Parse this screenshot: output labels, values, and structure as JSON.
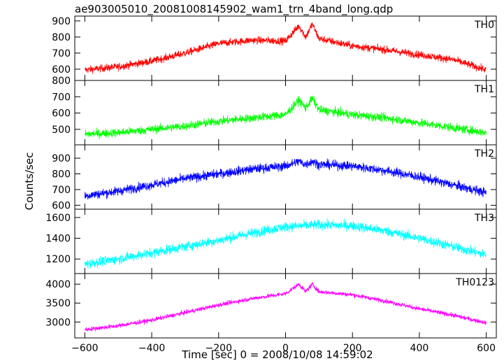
{
  "chart_data": {
    "type": "line",
    "title": "ae903005010_20081008145902_wam1_trn_4band_long.qdp",
    "xlabel": "Time [sec] 0 = 2008/10/08 14:59:02",
    "ylabel": "Counts/sec",
    "xlim": [
      -630,
      630
    ],
    "x_ticks": [
      -600,
      -400,
      -200,
      0,
      200,
      400,
      600
    ],
    "x_tick_labels": [
      "−600",
      "−400",
      "−200",
      "0",
      "200",
      "400",
      "600"
    ],
    "grid": false,
    "panels": [
      {
        "name": "TH0",
        "color": "#ff0000",
        "ylim": [
          530,
          930
        ],
        "y_ticks": [
          600,
          700,
          800,
          900
        ],
        "y_tick_labels": [
          "600",
          "700",
          "800",
          "900"
        ],
        "noise": 22,
        "series": {
          "x": [
            -600,
            -500,
            -400,
            -300,
            -200,
            -100,
            0,
            40,
            60,
            80,
            100,
            200,
            300,
            400,
            500,
            600
          ],
          "y": [
            595,
            615,
            650,
            700,
            760,
            780,
            775,
            870,
            800,
            880,
            790,
            745,
            720,
            690,
            660,
            595
          ]
        }
      },
      {
        "name": "TH1",
        "color": "#00ff00",
        "ylim": [
          405,
          800
        ],
        "y_ticks": [
          500,
          600,
          700,
          800
        ],
        "y_tick_labels": [
          "500",
          "600",
          "700",
          "800"
        ],
        "noise": 25,
        "series": {
          "x": [
            -600,
            -500,
            -400,
            -300,
            -200,
            -100,
            0,
            40,
            60,
            80,
            100,
            200,
            300,
            400,
            500,
            600
          ],
          "y": [
            470,
            480,
            500,
            520,
            550,
            570,
            590,
            680,
            630,
            690,
            620,
            590,
            570,
            540,
            510,
            480
          ]
        }
      },
      {
        "name": "TH2",
        "color": "#0000ff",
        "ylim": [
          575,
          985
        ],
        "y_ticks": [
          600,
          700,
          800,
          900
        ],
        "y_tick_labels": [
          "600",
          "700",
          "800",
          "900"
        ],
        "noise": 28,
        "series": {
          "x": [
            -600,
            -500,
            -400,
            -300,
            -200,
            -100,
            0,
            40,
            60,
            80,
            100,
            200,
            300,
            400,
            500,
            600
          ],
          "y": [
            660,
            690,
            730,
            770,
            800,
            830,
            850,
            880,
            860,
            880,
            860,
            850,
            820,
            780,
            730,
            680
          ]
        }
      },
      {
        "name": "TH3",
        "color": "#00ffff",
        "ylim": [
          1060,
          1680
        ],
        "y_ticks": [
          1200,
          1400,
          1600
        ],
        "y_tick_labels": [
          "1200",
          "1400",
          "1600"
        ],
        "noise": 45,
        "series": {
          "x": [
            -600,
            -500,
            -400,
            -300,
            -200,
            -100,
            0,
            100,
            200,
            300,
            400,
            500,
            600
          ],
          "y": [
            1150,
            1200,
            1260,
            1320,
            1380,
            1450,
            1510,
            1530,
            1520,
            1470,
            1400,
            1320,
            1240
          ]
        }
      },
      {
        "name": "TH0123",
        "color": "#ff00ff",
        "ylim": [
          2580,
          4280
        ],
        "y_ticks": [
          3000,
          3500,
          4000
        ],
        "y_tick_labels": [
          "3000",
          "3500",
          "4000"
        ],
        "noise": 55,
        "series": {
          "x": [
            -600,
            -500,
            -400,
            -300,
            -200,
            -100,
            0,
            40,
            60,
            80,
            100,
            200,
            300,
            400,
            500,
            600
          ],
          "y": [
            2800,
            2900,
            3050,
            3250,
            3450,
            3620,
            3750,
            4000,
            3800,
            4000,
            3800,
            3720,
            3550,
            3350,
            3180,
            2980
          ]
        }
      }
    ]
  }
}
